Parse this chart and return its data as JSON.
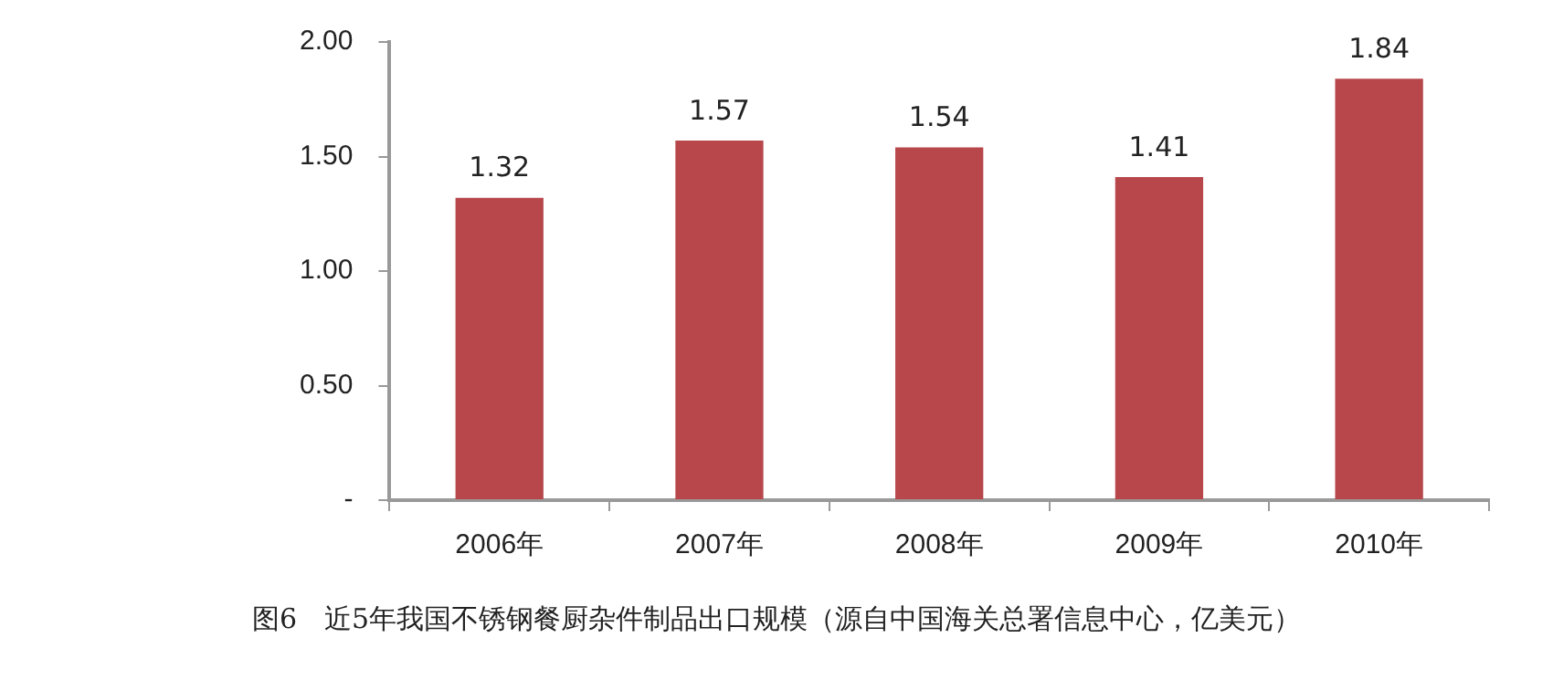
{
  "chart_data": {
    "type": "bar",
    "categories": [
      "2006年",
      "2007年",
      "2008年",
      "2009年",
      "2010年"
    ],
    "values": [
      1.32,
      1.57,
      1.54,
      1.41,
      1.84
    ],
    "color": "#b8474b",
    "ylim": [
      0,
      2
    ],
    "yticks": [
      {
        "value": 0,
        "label": "-"
      },
      {
        "value": 0.5,
        "label": "0.50"
      },
      {
        "value": 1,
        "label": "1.00"
      },
      {
        "value": 1.5,
        "label": "1.50"
      },
      {
        "value": 2,
        "label": "2.00"
      }
    ],
    "grid": false,
    "legend": false,
    "data_labels": true,
    "annotations": [
      "图6　近5年我国不锈钢餐厨杂件制品出口规模（源自中国海关总署信息中心，亿美元）"
    ]
  }
}
